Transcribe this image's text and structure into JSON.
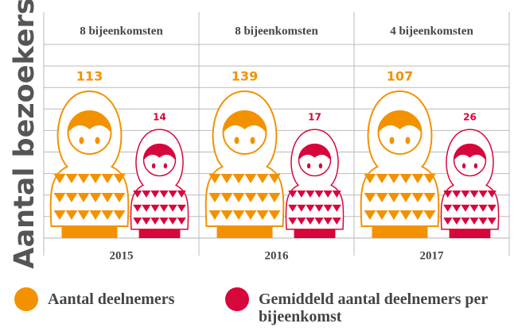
{
  "chart_data": {
    "type": "pictogram",
    "ylabel": "Aantal bezoekers",
    "categories": [
      "2015",
      "2016",
      "2017"
    ],
    "subtitles": [
      "8 bijeenkomsten",
      "8 bijeenkomsten",
      "4 bijeenkomsten"
    ],
    "series": [
      {
        "name": "Aantal deelnemers",
        "color": "#f39200",
        "values": [
          113,
          139,
          107
        ]
      },
      {
        "name": "Gemiddeld aantal deelnemers per bijeenkomst",
        "color": "#d7063b",
        "values": [
          14,
          17,
          26
        ]
      }
    ],
    "grid": true
  }
}
